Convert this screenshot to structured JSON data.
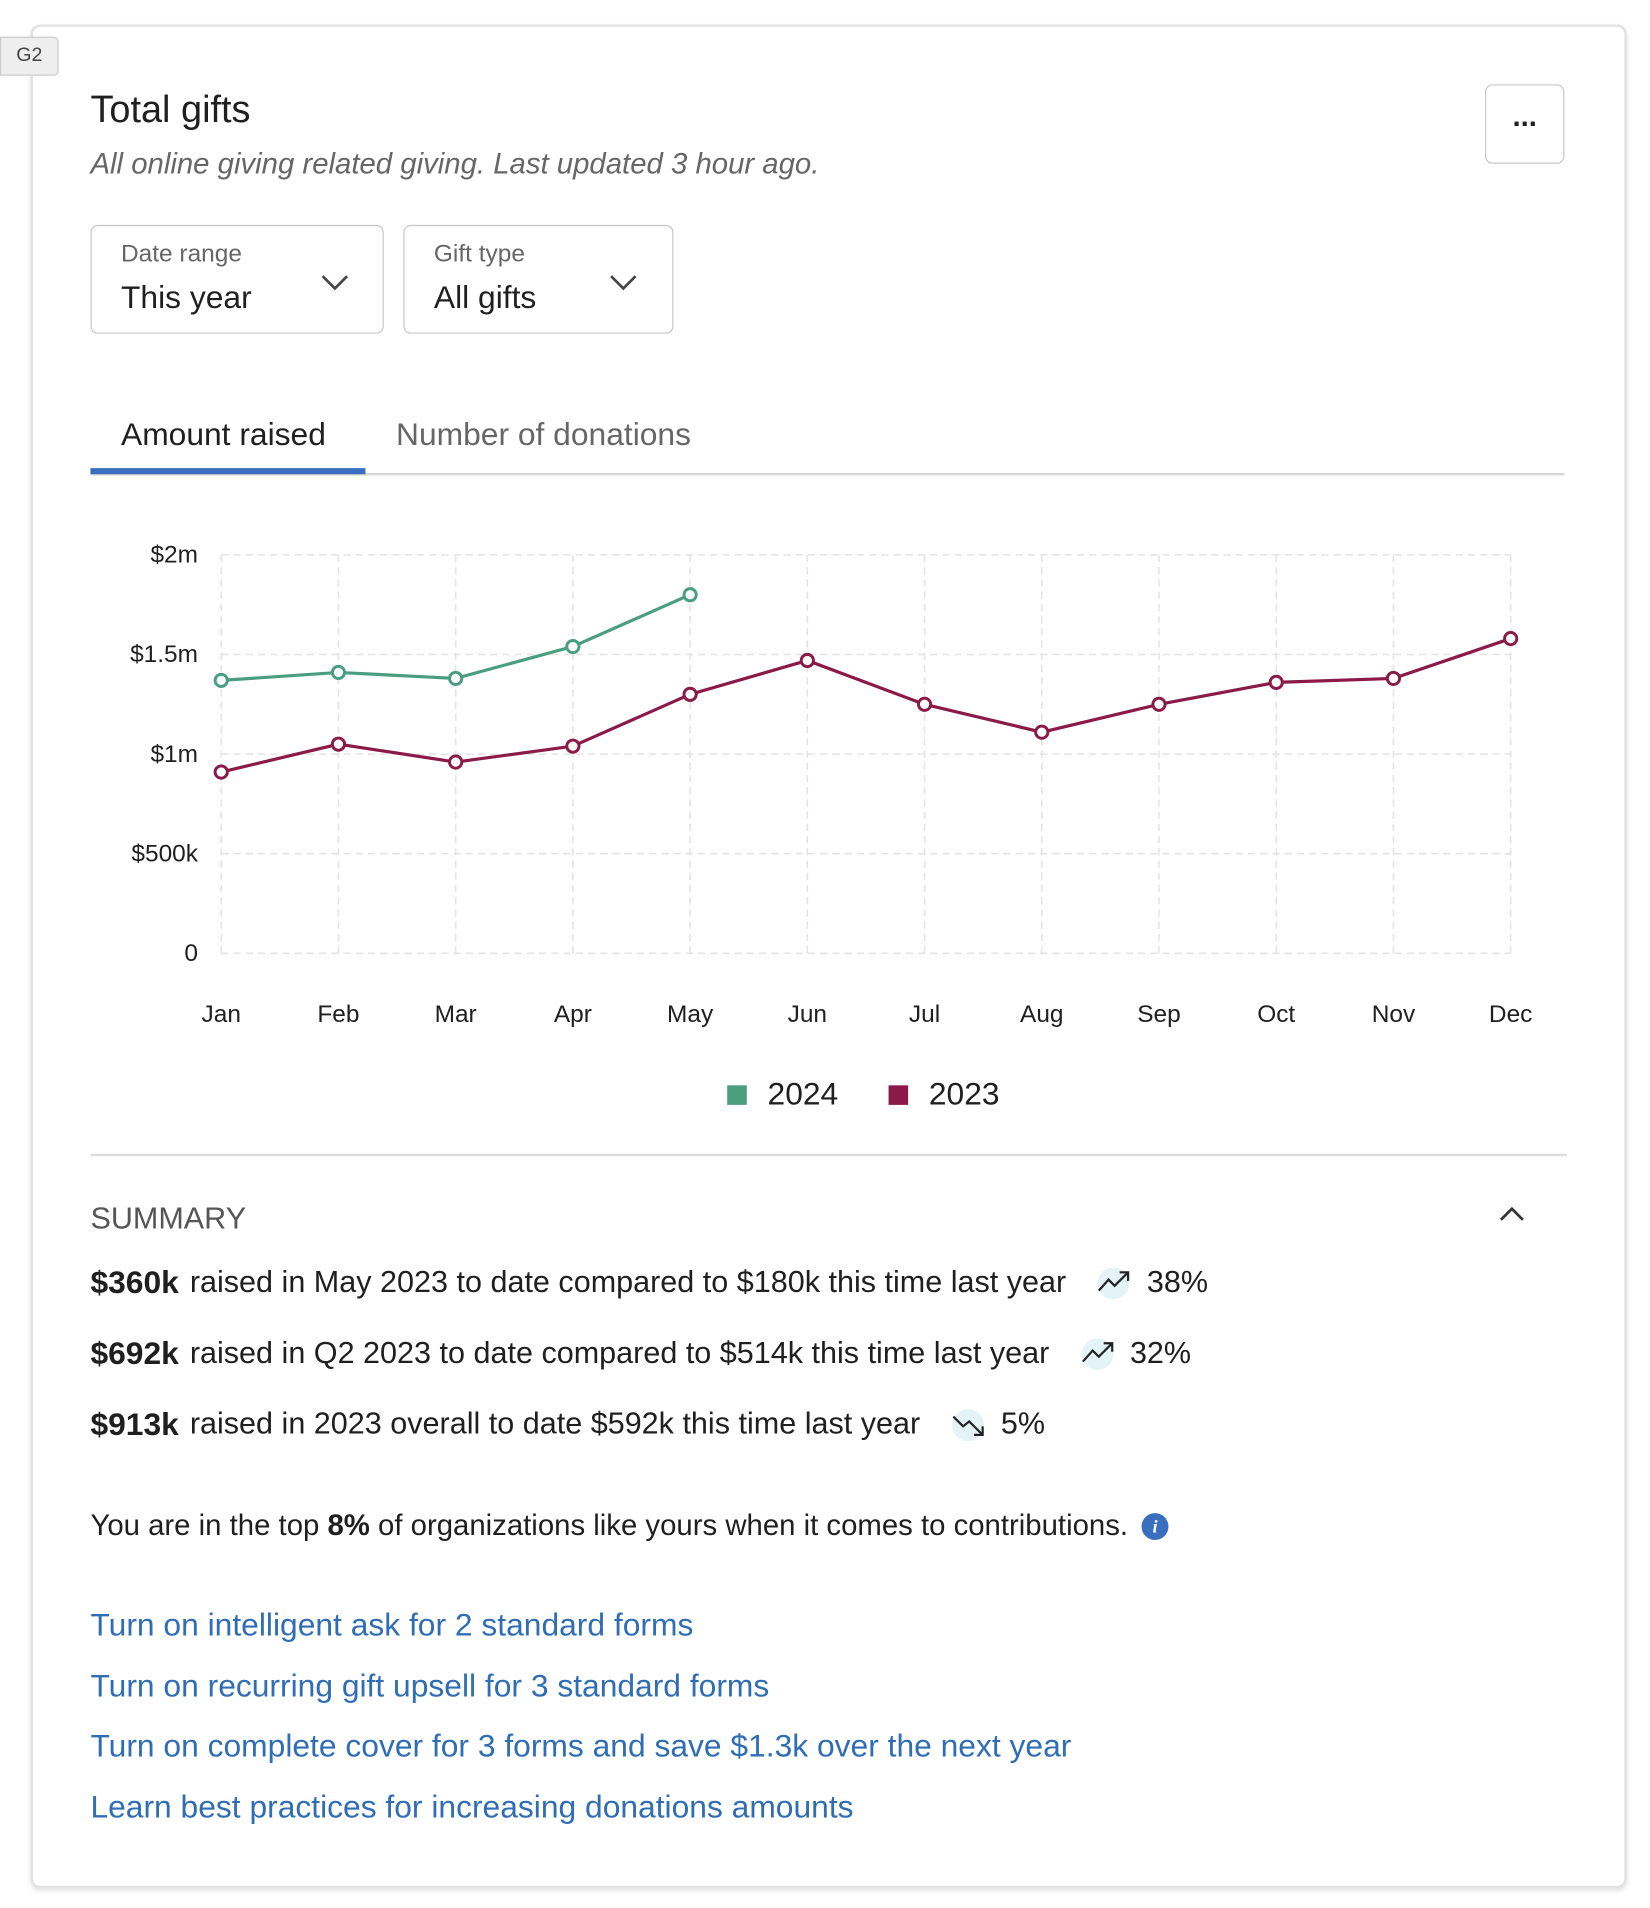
{
  "badge": "G2",
  "header": {
    "title": "Total gifts",
    "subtitle": "All online giving related giving. Last updated 3 hour ago.",
    "menu": "..."
  },
  "filters": [
    {
      "label": "Date range",
      "value": "This year"
    },
    {
      "label": "Gift type",
      "value": "All gifts"
    }
  ],
  "tabs": {
    "items": [
      "Amount raised",
      "Number of donations"
    ],
    "active": 0
  },
  "chart_data": {
    "type": "line",
    "categories": [
      "Jan",
      "Feb",
      "Mar",
      "Apr",
      "May",
      "Jun",
      "Jul",
      "Aug",
      "Sep",
      "Oct",
      "Nov",
      "Dec"
    ],
    "series": [
      {
        "name": "2024",
        "color": "#4a9e80",
        "values": [
          1370000,
          1410000,
          1380000,
          1540000,
          1800000,
          null,
          null,
          null,
          null,
          null,
          null,
          null
        ]
      },
      {
        "name": "2023",
        "color": "#8b1a48",
        "values": [
          910000,
          1050000,
          960000,
          1040000,
          1300000,
          1470000,
          1250000,
          1110000,
          1250000,
          1360000,
          1380000,
          1580000
        ]
      }
    ],
    "ylim": [
      0,
      2000000
    ],
    "yticks": [
      0,
      {
        "value": 500000,
        "label": "$500k"
      },
      {
        "value": 1000000,
        "label": "$1m"
      },
      {
        "value": 1500000,
        "label": "$1.5m"
      },
      {
        "value": 2000000,
        "label": "$2m"
      }
    ],
    "grid": true,
    "legend": "bottom"
  },
  "summary": {
    "heading": "SUMMARY",
    "items": [
      {
        "amount": "$360k",
        "text": "raised in May 2023 to date compared to $180k this time last year",
        "trend": "up",
        "change": "38%"
      },
      {
        "amount": "$692k",
        "text": "raised in Q2 2023 to date compared to $514k this time last year",
        "trend": "up",
        "change": "32%"
      },
      {
        "amount": "$913k",
        "text": "raised in 2023 overall to date $592k this time last year",
        "trend": "down",
        "change": "5%"
      }
    ],
    "rank": {
      "before": "You are in the top",
      "value": "8%",
      "after": "of organizations like yours when it comes to contributions."
    },
    "links": [
      "Turn on intelligent ask for 2 standard forms",
      "Turn on recurring gift upsell for 3 standard forms",
      "Turn on complete cover for 3 forms and save $1.3k over the next year",
      "Learn best practices for increasing donations amounts"
    ]
  }
}
